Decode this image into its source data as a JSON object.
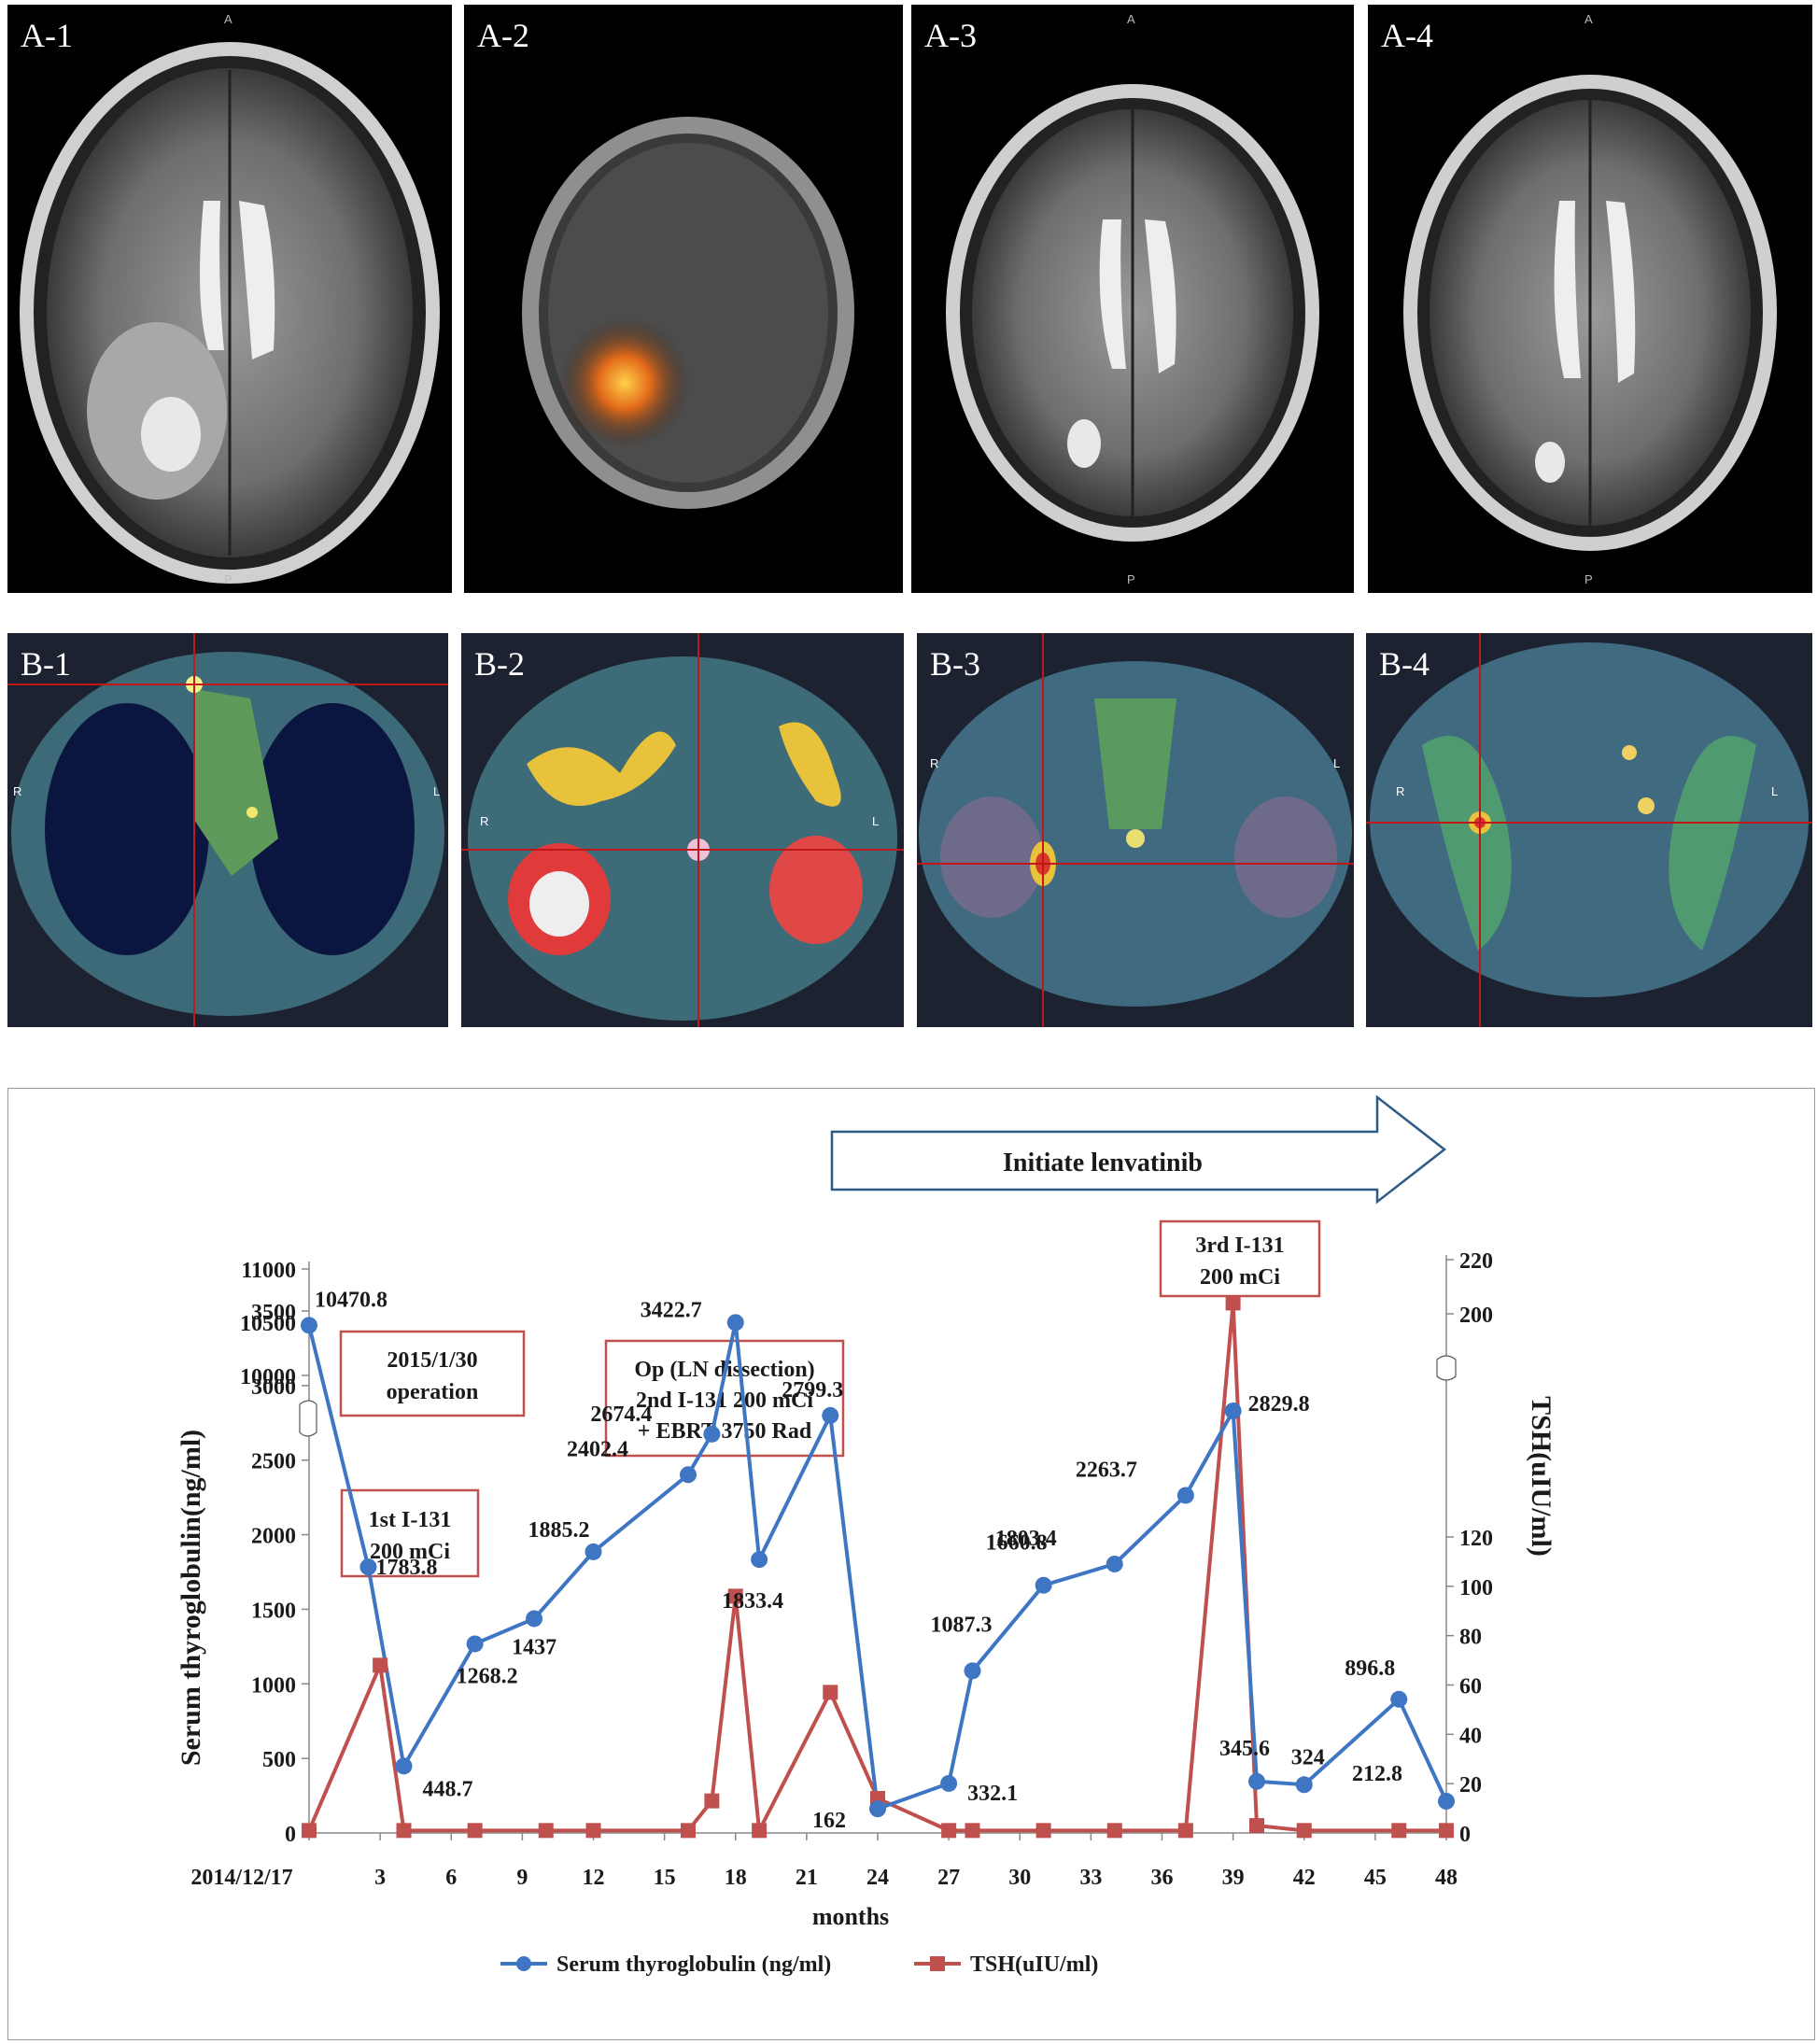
{
  "panels": [
    {
      "label": "A-1",
      "top": "A",
      "bottom": "P"
    },
    {
      "label": "A-2",
      "top": "",
      "bottom": ""
    },
    {
      "label": "A-3",
      "top": "A",
      "bottom": "P"
    },
    {
      "label": "A-4",
      "top": "A",
      "bottom": "P"
    },
    {
      "label": "B-1",
      "left": "R",
      "right": "L"
    },
    {
      "label": "B-2",
      "left": "R",
      "right": "L"
    },
    {
      "label": "B-3",
      "left": "R",
      "right": "L"
    },
    {
      "label": "B-4",
      "left": "R",
      "right": "L"
    }
  ],
  "chart_data": {
    "type": "line",
    "xlabel": "months",
    "ylabel": "Serum thyroglobulin(ng/ml)",
    "y2label": "TSH(uIU/ml)",
    "x_ticks": [
      "2014/12/17",
      "3",
      "6",
      "9",
      "12",
      "15",
      "18",
      "21",
      "24",
      "27",
      "30",
      "33",
      "36",
      "39",
      "42",
      "45",
      "48"
    ],
    "y_ticks": [
      "0",
      "500",
      "1000",
      "1500",
      "2000",
      "2500",
      "3000",
      "3500",
      "10000",
      "10500",
      "11000"
    ],
    "y2_ticks": [
      "0",
      "20",
      "40",
      "60",
      "80",
      "100",
      "120",
      "200",
      "220"
    ],
    "series": [
      {
        "name": "Serum thyroglobulin (ng/ml)",
        "color": "#3f76c4",
        "x": [
          0,
          2.5,
          4,
          7,
          9.5,
          12,
          16,
          17,
          18,
          19,
          22,
          24,
          27,
          28,
          31,
          34,
          37,
          39,
          40,
          42,
          46,
          48
        ],
        "y": [
          10470.8,
          1783.8,
          448.7,
          1268.2,
          1437,
          1885.2,
          2402.4,
          2674.4,
          3422.7,
          1833.4,
          2799.3,
          162,
          332.1,
          1087.3,
          1660.8,
          1803.4,
          2263.7,
          2829.8,
          345.6,
          324,
          896.8,
          212.8
        ],
        "labels": [
          "10470.8",
          "1783.8",
          "448.7",
          "1268.2",
          "1437",
          "1885.2",
          "2402.4",
          "2674.4",
          "3422.7",
          "1833.4",
          "2799.3",
          "162",
          "332.1",
          "1087.3",
          "1660.8",
          "1803.4",
          "2263.7",
          "2829.8",
          "345.6",
          "324",
          "896.8",
          "212.8"
        ]
      },
      {
        "name": "TSH(uIU/ml)",
        "color": "#c0504d",
        "x": [
          0,
          3,
          4,
          7,
          10,
          12,
          16,
          17,
          18,
          19,
          22,
          24,
          27,
          28,
          31,
          34,
          37,
          39,
          40,
          42,
          46,
          48
        ],
        "y": [
          1,
          68,
          1,
          1,
          1,
          1,
          1,
          13,
          96,
          1,
          57,
          14,
          1,
          1,
          1,
          1,
          1,
          204,
          3,
          1,
          1,
          1
        ]
      }
    ],
    "annotations": [
      {
        "lines": [
          "2015/1/30",
          "operation"
        ]
      },
      {
        "lines": [
          "1st I-131",
          "200 mCi"
        ]
      },
      {
        "lines": [
          "Op  (LN dissection)",
          "2nd  I-131 200 mCi",
          "+ EBRT 3750 Rad"
        ]
      },
      {
        "lines": [
          "3rd I-131",
          "200 mCi"
        ]
      }
    ],
    "arrow_label": "Initiate lenvatinib",
    "axis_break": true,
    "legend_position": "bottom"
  }
}
